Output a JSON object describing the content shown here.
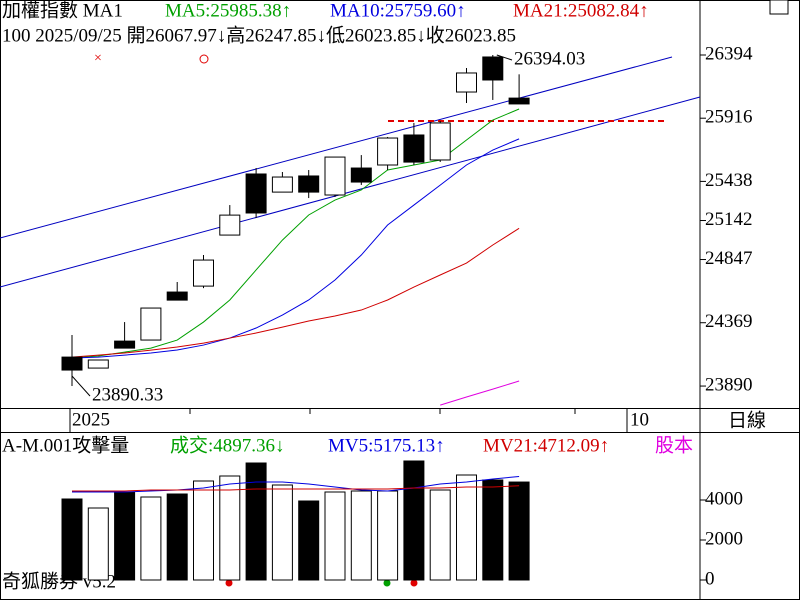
{
  "chart_data": [
    {
      "type": "candlestick",
      "title": "加權指數 MA1",
      "info": "100 2025/09/25 開26067.97↓高26247.85↓低26023.85↓收26023.85",
      "categories": [
        null,
        null,
        null,
        null,
        null,
        null,
        null,
        null,
        null,
        null,
        null,
        null,
        null,
        null,
        null,
        null,
        null,
        null
      ],
      "open": [
        24109,
        24026,
        24230,
        24238,
        24601,
        24646,
        25032,
        25494,
        25357,
        25479,
        25335,
        25539,
        25562,
        25789,
        25600,
        26114,
        26379,
        26067.97
      ],
      "high": [
        24276,
        24087,
        24374,
        24480,
        24677,
        24881,
        25259,
        25539,
        25509,
        25524,
        25622,
        25637,
        25774,
        25880,
        25895,
        26296,
        26394.03,
        26247.85
      ],
      "low": [
        23890.33,
        24026,
        24177,
        24238,
        24540,
        24631,
        25032,
        25161,
        25357,
        25312,
        25320,
        25411,
        25524,
        25562,
        25585,
        26031,
        26054,
        26023.85
      ],
      "close": [
        24011,
        24087,
        24177,
        24480,
        24540,
        24843,
        25183,
        25199,
        25471,
        25357,
        25622,
        25433,
        25766,
        25584,
        25880,
        26258,
        26205,
        26023.85
      ],
      "up_color": "#ffffff",
      "down_color": "#000000",
      "series": [
        {
          "label": "MA5:25985.38↑",
          "color": "#00a000",
          "values": [
            24102,
            24117,
            24147,
            24177,
            24238,
            24374,
            24541,
            24768,
            24994,
            25184,
            25297,
            25373,
            25524,
            25562,
            25600,
            25751,
            25902,
            25985.38
          ]
        },
        {
          "label": "MA10:25759.60↑",
          "color": "#0000e0",
          "values": [
            24102,
            24109,
            24124,
            24140,
            24163,
            24200,
            24253,
            24329,
            24427,
            24541,
            24692,
            24881,
            25108,
            25259,
            25410,
            25562,
            25675,
            25759.6
          ]
        },
        {
          "label": "MA21:25082.84↑",
          "color": "#d00000",
          "values": [
            24109,
            24124,
            24140,
            24162,
            24185,
            24215,
            24253,
            24291,
            24336,
            24382,
            24420,
            24465,
            24541,
            24639,
            24730,
            24820,
            24957,
            25082.84
          ]
        },
        {
          "color": "#e000e0",
          "values": [
            null,
            null,
            null,
            null,
            null,
            null,
            null,
            null,
            null,
            null,
            null,
            null,
            null,
            null,
            23746,
            23807,
            23867,
            23928
          ]
        }
      ],
      "ylim": [
        23724,
        26810
      ],
      "yticks": [
        23890,
        24369,
        24847,
        25142,
        25438,
        25916,
        26394
      ],
      "x_labels": [
        "2025",
        "10"
      ],
      "period": "日線"
    },
    {
      "type": "bar",
      "title": "A-M.001攻擊量",
      "volume_label": "成交:4897.36↓",
      "values": [
        4050,
        3600,
        4400,
        4150,
        4300,
        4950,
        5200,
        5850,
        4750,
        3950,
        4400,
        4450,
        4450,
        5950,
        4500,
        5250,
        5000,
        4897.36
      ],
      "colors": [
        "#000000",
        "#ffffff",
        "#000000",
        "#ffffff",
        "#000000",
        "#ffffff",
        "#ffffff",
        "#000000",
        "#ffffff",
        "#000000",
        "#ffffff",
        "#ffffff",
        "#ffffff",
        "#000000",
        "#ffffff",
        "#ffffff",
        "#000000",
        "#000000"
      ],
      "series": [
        {
          "label": "MV5:5175.13↑",
          "color": "#0000e0",
          "values": [
            4400,
            4400,
            4400,
            4450,
            4500,
            4600,
            4800,
            4900,
            4900,
            4800,
            4650,
            4500,
            4450,
            4600,
            4800,
            4900,
            5050,
            5175.13
          ]
        },
        {
          "label": "MV21:4712.09↑",
          "color": "#d00000",
          "values": [
            4450,
            4450,
            4450,
            4500,
            4500,
            4500,
            4500,
            4550,
            4550,
            4550,
            4550,
            4550,
            4550,
            4600,
            4600,
            4650,
            4650,
            4712.09
          ]
        }
      ],
      "extra_label": "股本",
      "ylim": [
        -1000,
        7400
      ],
      "yticks": [
        0,
        2000,
        4000
      ],
      "footer": "奇狐勝券 v5.2"
    }
  ]
}
